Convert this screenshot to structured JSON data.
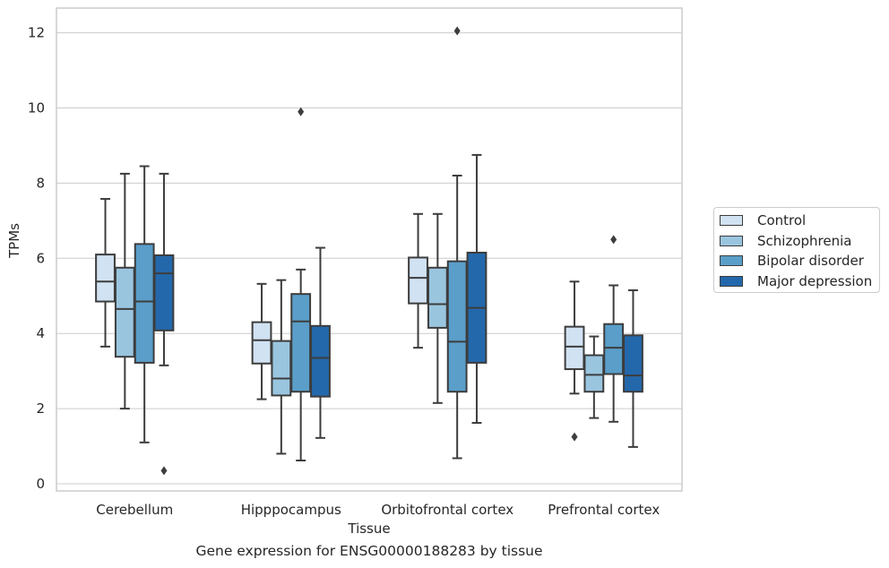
{
  "chart_data": {
    "type": "box",
    "title": "",
    "caption": "Gene expression for ENSG00000188283 by tissue",
    "xlabel": "Tissue",
    "ylabel": "TPMs",
    "ylim": [
      -0.2,
      12.65
    ],
    "yticks": [
      0,
      2,
      4,
      6,
      8,
      10,
      12
    ],
    "grid": "horizontal",
    "legend_position": "right",
    "categories": [
      "Cerebellum",
      "Hipppocampus",
      "Orbitofrontal cortex",
      "Prefrontal cortex"
    ],
    "series": [
      {
        "name": "Control",
        "color": "#d1e2f2",
        "boxes": [
          {
            "whislo": 3.65,
            "q1": 4.85,
            "med": 5.38,
            "q3": 6.1,
            "whishi": 7.58,
            "fliers": []
          },
          {
            "whislo": 2.25,
            "q1": 3.2,
            "med": 3.82,
            "q3": 4.3,
            "whishi": 5.32,
            "fliers": []
          },
          {
            "whislo": 3.62,
            "q1": 4.8,
            "med": 5.48,
            "q3": 6.02,
            "whishi": 7.18,
            "fliers": []
          },
          {
            "whislo": 2.4,
            "q1": 3.05,
            "med": 3.65,
            "q3": 4.18,
            "whishi": 5.38,
            "fliers": [
              1.25
            ]
          }
        ]
      },
      {
        "name": "Schizophrenia",
        "color": "#9ac5df",
        "boxes": [
          {
            "whislo": 2.0,
            "q1": 3.38,
            "med": 4.65,
            "q3": 5.75,
            "whishi": 8.25,
            "fliers": []
          },
          {
            "whislo": 0.8,
            "q1": 2.35,
            "med": 2.8,
            "q3": 3.8,
            "whishi": 5.42,
            "fliers": []
          },
          {
            "whislo": 2.15,
            "q1": 4.15,
            "med": 4.78,
            "q3": 5.75,
            "whishi": 7.18,
            "fliers": []
          },
          {
            "whislo": 1.75,
            "q1": 2.45,
            "med": 2.9,
            "q3": 3.42,
            "whishi": 3.92,
            "fliers": []
          }
        ]
      },
      {
        "name": "Bipolar disorder",
        "color": "#5a9ec9",
        "boxes": [
          {
            "whislo": 1.1,
            "q1": 3.22,
            "med": 4.85,
            "q3": 6.38,
            "whishi": 8.45,
            "fliers": []
          },
          {
            "whislo": 0.62,
            "q1": 2.45,
            "med": 4.32,
            "q3": 5.05,
            "whishi": 5.7,
            "fliers": [
              9.9
            ]
          },
          {
            "whislo": 0.68,
            "q1": 2.45,
            "med": 3.78,
            "q3": 5.92,
            "whishi": 8.2,
            "fliers": [
              12.05
            ]
          },
          {
            "whislo": 1.65,
            "q1": 2.92,
            "med": 3.62,
            "q3": 4.25,
            "whishi": 5.28,
            "fliers": [
              6.5
            ]
          }
        ]
      },
      {
        "name": "Major depression",
        "color": "#2468ac",
        "boxes": [
          {
            "whislo": 3.15,
            "q1": 4.08,
            "med": 5.6,
            "q3": 6.08,
            "whishi": 8.25,
            "fliers": [
              0.35
            ]
          },
          {
            "whislo": 1.22,
            "q1": 2.32,
            "med": 3.35,
            "q3": 4.2,
            "whishi": 6.28,
            "fliers": []
          },
          {
            "whislo": 1.62,
            "q1": 3.22,
            "med": 4.68,
            "q3": 6.15,
            "whishi": 8.75,
            "fliers": []
          },
          {
            "whislo": 0.98,
            "q1": 2.45,
            "med": 2.88,
            "q3": 3.95,
            "whishi": 5.15,
            "fliers": []
          }
        ]
      }
    ]
  }
}
